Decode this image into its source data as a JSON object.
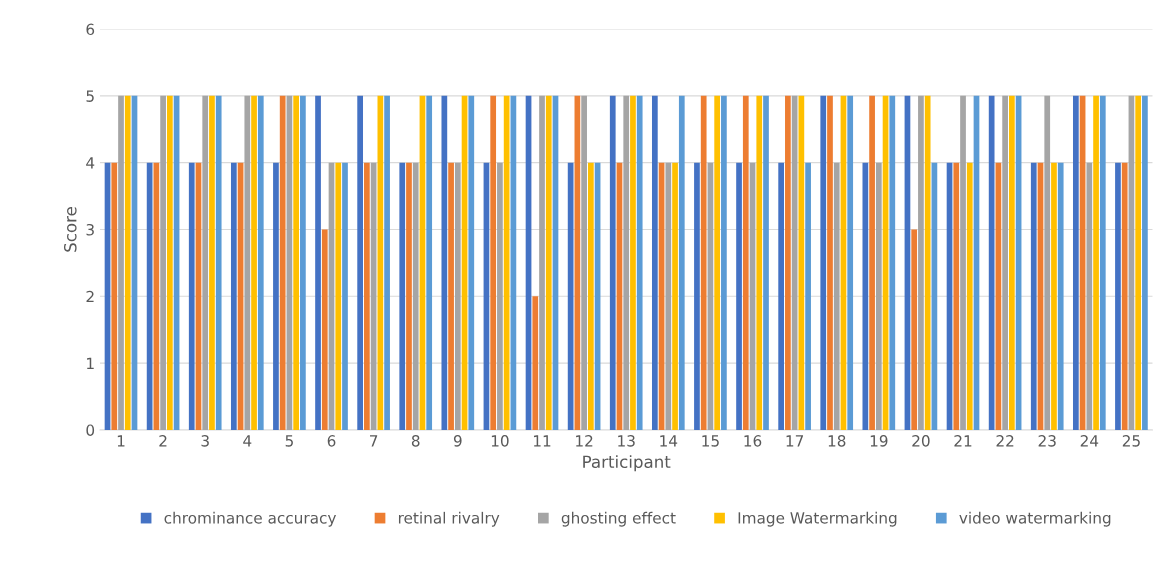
{
  "chart_data": {
    "type": "bar",
    "xlabel": "Participant",
    "ylabel": "Score",
    "categories": [
      "1",
      "2",
      "3",
      "4",
      "5",
      "6",
      "7",
      "8",
      "9",
      "10",
      "11",
      "12",
      "13",
      "14",
      "15",
      "16",
      "17",
      "18",
      "19",
      "20",
      "21",
      "22",
      "23",
      "24",
      "25"
    ],
    "series": [
      {
        "name": "chrominance accuracy",
        "color": "#4472c4",
        "values": [
          4,
          4,
          4,
          4,
          4,
          5,
          5,
          4,
          5,
          4,
          5,
          4,
          5,
          5,
          4,
          4,
          4,
          5,
          4,
          5,
          4,
          5,
          4,
          5,
          4
        ]
      },
      {
        "name": "retinal rivalry",
        "color": "#ed7d31",
        "values": [
          4,
          4,
          4,
          4,
          5,
          3,
          4,
          4,
          4,
          5,
          2,
          5,
          4,
          4,
          5,
          5,
          5,
          5,
          5,
          3,
          4,
          4,
          4,
          5,
          4
        ]
      },
      {
        "name": "ghosting effect",
        "color": "#a5a5a5",
        "values": [
          5,
          5,
          5,
          5,
          5,
          4,
          4,
          4,
          4,
          4,
          5,
          5,
          5,
          4,
          4,
          4,
          5,
          4,
          4,
          5,
          5,
          5,
          5,
          4,
          5
        ]
      },
      {
        "name": "Image Watermarking",
        "color": "#ffc000",
        "values": [
          5,
          5,
          5,
          5,
          5,
          4,
          5,
          5,
          5,
          5,
          5,
          4,
          5,
          4,
          5,
          5,
          5,
          5,
          5,
          5,
          4,
          5,
          4,
          5,
          5
        ]
      },
      {
        "name": "video watermarking",
        "color": "#5b9bd5",
        "values": [
          5,
          5,
          5,
          5,
          5,
          4,
          5,
          5,
          5,
          5,
          5,
          4,
          5,
          5,
          5,
          5,
          4,
          5,
          5,
          4,
          5,
          5,
          4,
          5,
          5
        ]
      }
    ],
    "ylim": [
      0,
      6
    ],
    "yticks": [
      0,
      1,
      2,
      3,
      4,
      5,
      6
    ],
    "grid": "y",
    "legend": "bottom"
  }
}
